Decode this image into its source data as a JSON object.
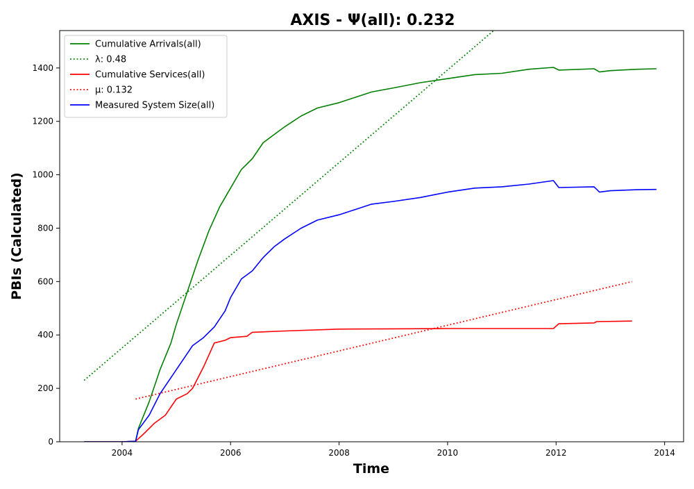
{
  "chart_data": {
    "type": "line",
    "title": "AXIS -  Ψ(all): 0.232",
    "xlabel": "Time",
    "ylabel": "PBIs (Calculated)",
    "xlim": [
      2002.85,
      2014.35
    ],
    "ylim": [
      0,
      1540
    ],
    "xticks": [
      2004,
      2006,
      2008,
      2010,
      2012,
      2014
    ],
    "xtick_labels": [
      "2004",
      "2006",
      "2008",
      "2010",
      "2012",
      "2014"
    ],
    "yticks": [
      0,
      200,
      400,
      600,
      800,
      1000,
      1200,
      1400
    ],
    "ytick_labels": [
      "0",
      "200",
      "400",
      "600",
      "800",
      "1000",
      "1200",
      "1400"
    ],
    "grid": false,
    "legend_position": "top-left",
    "series": [
      {
        "name": "Cumulative Arrivals(all)",
        "color": "#008000",
        "style": "solid",
        "x": [
          2003.3,
          2004.0,
          2004.25,
          2004.3,
          2004.5,
          2004.7,
          2004.9,
          2005.0,
          2005.2,
          2005.4,
          2005.6,
          2005.8,
          2006.0,
          2006.2,
          2006.4,
          2006.6,
          2006.8,
          2007.0,
          2007.3,
          2007.6,
          2008.0,
          2008.3,
          2008.6,
          2009.0,
          2009.5,
          2010.0,
          2010.5,
          2011.0,
          2011.5,
          2011.95,
          2012.05,
          2012.7,
          2012.8,
          2013.0,
          2013.5,
          2013.85
        ],
        "y": [
          0,
          0,
          2,
          50,
          150,
          270,
          370,
          440,
          560,
          680,
          790,
          880,
          950,
          1020,
          1060,
          1120,
          1150,
          1180,
          1220,
          1250,
          1270,
          1290,
          1310,
          1325,
          1345,
          1360,
          1375,
          1380,
          1395,
          1402,
          1392,
          1397,
          1385,
          1390,
          1395,
          1397
        ]
      },
      {
        "name": "λ: 0.48",
        "color": "#008000",
        "style": "dotted",
        "x": [
          2003.3,
          2010.85
        ],
        "y": [
          230,
          1540
        ]
      },
      {
        "name": "Cumulative Services(all)",
        "color": "#ff0000",
        "style": "solid",
        "x": [
          2003.3,
          2004.0,
          2004.25,
          2004.4,
          2004.6,
          2004.8,
          2005.0,
          2005.2,
          2005.3,
          2005.5,
          2005.7,
          2005.9,
          2006.0,
          2006.3,
          2006.4,
          2007.0,
          2008.0,
          2009.0,
          2010.0,
          2011.0,
          2011.95,
          2012.05,
          2012.7,
          2012.75,
          2013.4
        ],
        "y": [
          0,
          0,
          2,
          30,
          70,
          100,
          160,
          180,
          200,
          280,
          370,
          380,
          390,
          395,
          410,
          415,
          422,
          423,
          424,
          424,
          424,
          442,
          445,
          450,
          452
        ]
      },
      {
        "name": "μ: 0.132",
        "color": "#ff0000",
        "style": "dotted",
        "x": [
          2004.25,
          2013.4
        ],
        "y": [
          160,
          600
        ]
      },
      {
        "name": "Measured System Size(all)",
        "color": "#0000ff",
        "style": "solid",
        "x": [
          2003.3,
          2004.0,
          2004.25,
          2004.3,
          2004.5,
          2004.7,
          2004.9,
          2005.1,
          2005.3,
          2005.5,
          2005.7,
          2005.9,
          2006.0,
          2006.2,
          2006.4,
          2006.6,
          2006.8,
          2007.0,
          2007.3,
          2007.6,
          2008.0,
          2008.3,
          2008.6,
          2009.0,
          2009.5,
          2010.0,
          2010.5,
          2011.0,
          2011.5,
          2011.95,
          2012.05,
          2012.7,
          2012.8,
          2013.0,
          2013.5,
          2013.85
        ],
        "y": [
          0,
          0,
          2,
          45,
          100,
          180,
          240,
          300,
          360,
          390,
          430,
          490,
          540,
          610,
          640,
          690,
          730,
          760,
          800,
          830,
          850,
          870,
          890,
          900,
          915,
          935,
          950,
          955,
          965,
          978,
          952,
          955,
          935,
          940,
          944,
          945
        ]
      }
    ]
  }
}
